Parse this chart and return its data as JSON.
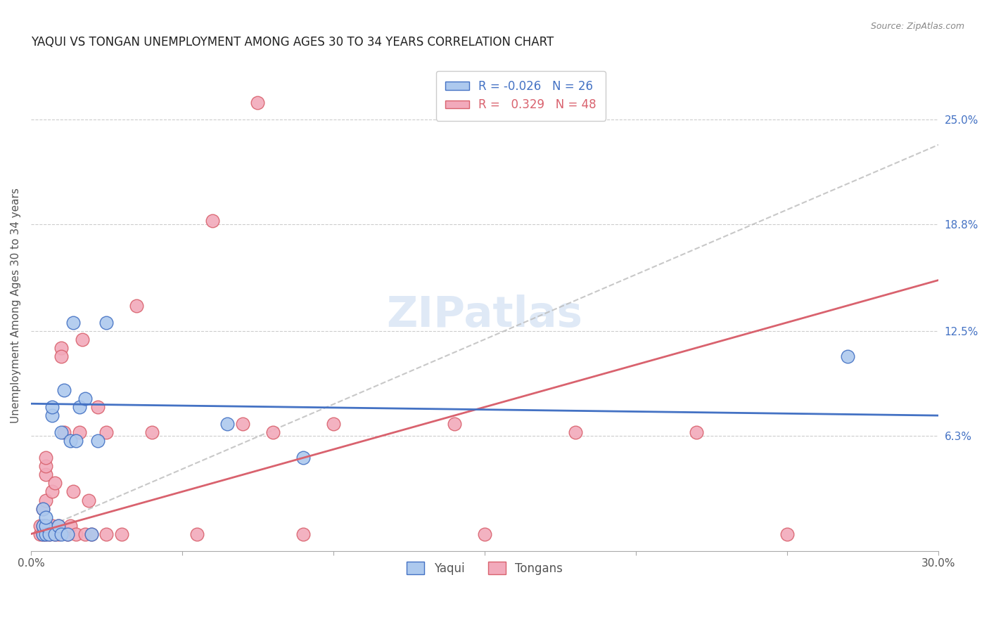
{
  "title": "YAQUI VS TONGAN UNEMPLOYMENT AMONG AGES 30 TO 34 YEARS CORRELATION CHART",
  "source": "Source: ZipAtlas.com",
  "ylabel": "Unemployment Among Ages 30 to 34 years",
  "xlim": [
    0.0,
    0.3
  ],
  "ylim": [
    -0.005,
    0.285
  ],
  "xticks": [
    0.0,
    0.05,
    0.1,
    0.15,
    0.2,
    0.25,
    0.3
  ],
  "xticklabels": [
    "0.0%",
    "",
    "",
    "",
    "",
    "",
    "30.0%"
  ],
  "ytick_positions": [
    0.063,
    0.125,
    0.188,
    0.25
  ],
  "ytick_labels": [
    "6.3%",
    "12.5%",
    "18.8%",
    "25.0%"
  ],
  "legend_R_yaqui": "-0.026",
  "legend_N_yaqui": "26",
  "legend_R_tongan": "0.329",
  "legend_N_tongan": "48",
  "color_yaqui": "#adc9ee",
  "color_tongan": "#f2aabb",
  "color_yaqui_line": "#4472c4",
  "color_tongan_line": "#d9626e",
  "yaqui_line_x": [
    0.0,
    0.3
  ],
  "yaqui_line_y": [
    0.082,
    0.075
  ],
  "tongan_line_x": [
    0.0,
    0.3
  ],
  "tongan_line_y": [
    0.005,
    0.155
  ],
  "dash_line_x": [
    0.0,
    0.3
  ],
  "dash_line_y": [
    0.005,
    0.235
  ],
  "yaqui_x": [
    0.004,
    0.004,
    0.004,
    0.005,
    0.005,
    0.005,
    0.006,
    0.007,
    0.007,
    0.008,
    0.009,
    0.01,
    0.01,
    0.011,
    0.012,
    0.013,
    0.014,
    0.015,
    0.016,
    0.018,
    0.02,
    0.022,
    0.025,
    0.065,
    0.09,
    0.27
  ],
  "yaqui_y": [
    0.005,
    0.01,
    0.02,
    0.005,
    0.01,
    0.015,
    0.005,
    0.075,
    0.08,
    0.005,
    0.01,
    0.005,
    0.065,
    0.09,
    0.005,
    0.06,
    0.13,
    0.06,
    0.08,
    0.085,
    0.005,
    0.06,
    0.13,
    0.07,
    0.05,
    0.11
  ],
  "tongan_x": [
    0.003,
    0.003,
    0.004,
    0.004,
    0.004,
    0.005,
    0.005,
    0.005,
    0.005,
    0.005,
    0.005,
    0.006,
    0.007,
    0.007,
    0.008,
    0.008,
    0.009,
    0.009,
    0.01,
    0.01,
    0.011,
    0.012,
    0.013,
    0.014,
    0.015,
    0.016,
    0.017,
    0.018,
    0.019,
    0.02,
    0.022,
    0.025,
    0.025,
    0.03,
    0.035,
    0.04,
    0.055,
    0.06,
    0.07,
    0.075,
    0.08,
    0.09,
    0.1,
    0.14,
    0.15,
    0.18,
    0.22,
    0.25
  ],
  "tongan_y": [
    0.005,
    0.01,
    0.005,
    0.01,
    0.02,
    0.005,
    0.01,
    0.025,
    0.04,
    0.045,
    0.05,
    0.005,
    0.01,
    0.03,
    0.005,
    0.035,
    0.005,
    0.01,
    0.115,
    0.11,
    0.065,
    0.005,
    0.01,
    0.03,
    0.005,
    0.065,
    0.12,
    0.005,
    0.025,
    0.005,
    0.08,
    0.005,
    0.065,
    0.005,
    0.14,
    0.065,
    0.005,
    0.19,
    0.07,
    0.26,
    0.065,
    0.005,
    0.07,
    0.07,
    0.005,
    0.065,
    0.065,
    0.005
  ]
}
